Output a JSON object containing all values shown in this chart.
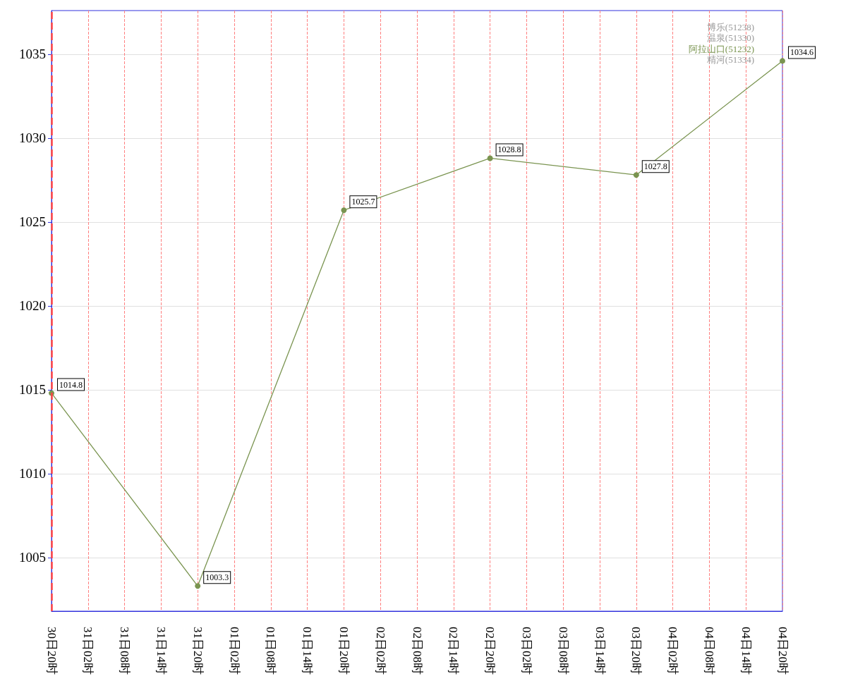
{
  "chart_data": {
    "type": "line",
    "categories": [
      "30日20时",
      "31日02时",
      "31日08时",
      "31日14时",
      "31日20时",
      "01日02时",
      "01日08时",
      "01日14时",
      "01日20时",
      "02日02时",
      "02日08时",
      "02日14时",
      "02日20时",
      "03日02时",
      "03日08时",
      "03日14时",
      "03日20时",
      "04日02时",
      "04日08时",
      "04日14时",
      "04日20时"
    ],
    "series": [
      {
        "name": "博乐(51238)",
        "color": "#999999",
        "values": [
          null,
          null,
          null,
          null,
          null,
          null,
          null,
          null,
          null,
          null,
          null,
          null,
          null,
          null,
          null,
          null,
          null,
          null,
          null,
          null,
          null
        ]
      },
      {
        "name": "温泉(51330)",
        "color": "#999999",
        "values": [
          null,
          null,
          null,
          null,
          null,
          null,
          null,
          null,
          null,
          null,
          null,
          null,
          null,
          null,
          null,
          null,
          null,
          null,
          null,
          null,
          null
        ]
      },
      {
        "name": "阿拉山口(51232)",
        "color": "#7a9450",
        "values": [
          1014.8,
          null,
          null,
          null,
          1003.3,
          null,
          null,
          null,
          1025.7,
          null,
          null,
          null,
          1028.8,
          null,
          null,
          null,
          1027.8,
          null,
          null,
          null,
          1034.6
        ]
      },
      {
        "name": "精河(51334)",
        "color": "#999999",
        "values": [
          null,
          null,
          null,
          null,
          null,
          null,
          null,
          null,
          null,
          null,
          null,
          null,
          null,
          null,
          null,
          null,
          null,
          null,
          null,
          null,
          null
        ]
      }
    ],
    "ylim": [
      1001.8,
      1037.6
    ],
    "yticks": [
      1005,
      1010,
      1015,
      1020,
      1025,
      1030,
      1035
    ],
    "grid": true,
    "legend": "top right",
    "marker": "circle",
    "data_labels": true,
    "ref_lines": [
      {
        "axis": "x",
        "value": "30日20时",
        "color": "#ff4444",
        "line_style": "dashed"
      }
    ]
  }
}
